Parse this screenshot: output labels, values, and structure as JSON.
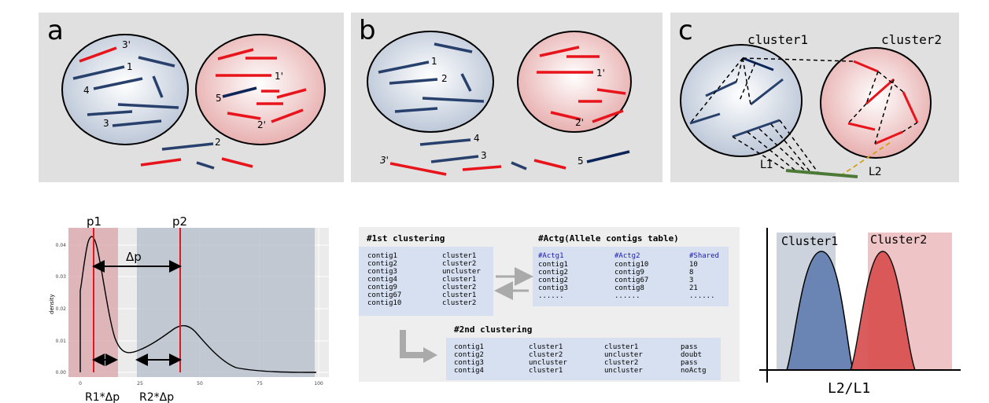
{
  "panel_a": {
    "letter": "a",
    "labels": {
      "l1": "1",
      "l2": "2",
      "l3": "3",
      "l4": "4",
      "l1p": "1'",
      "l2p": "2'",
      "l3p": "3'",
      "l5": "5"
    }
  },
  "panel_b": {
    "letter": "b",
    "labels": {
      "l1": "1",
      "l2": "2",
      "l3": "3",
      "l4": "4",
      "l5": "5",
      "l1p": "1'",
      "l2p": "2'",
      "l3p": "3'"
    }
  },
  "panel_c": {
    "letter": "c",
    "cluster1": "cluster1",
    "cluster2": "cluster2",
    "l1": "L1",
    "l2": "L2"
  },
  "density_plot": {
    "p1": "p1",
    "p2": "p2",
    "delta_p": "Δp",
    "r1": "R1*Δp",
    "r2": "R2*Δp",
    "ylabel": "density",
    "yticks": [
      "0.04",
      "0.03",
      "0.02",
      "0.01",
      "0.00"
    ],
    "xticks": [
      "0",
      "25",
      "50",
      "75",
      "100"
    ]
  },
  "tables": {
    "first_title": "#1st clustering",
    "first_rows": [
      [
        "contig1",
        "cluster1"
      ],
      [
        "contig2",
        "cluster2"
      ],
      [
        "contig3",
        "uncluster"
      ],
      [
        "contig4",
        "cluster1"
      ],
      [
        "contig9",
        "cluster2"
      ],
      [
        "contig67",
        "cluster1"
      ],
      [
        "contig10",
        "cluster2"
      ]
    ],
    "actg_title": "#Actg(Allele contigs table)",
    "actg_header": [
      "#Actg1",
      "#Actg2",
      "#Shared"
    ],
    "actg_rows": [
      [
        "contig1",
        "contig10",
        "10"
      ],
      [
        "contig2",
        "contig9",
        "8"
      ],
      [
        "contig2",
        "contig67",
        "3"
      ],
      [
        "contig3",
        "contig8",
        "21"
      ],
      [
        "......",
        "......",
        "......"
      ]
    ],
    "second_title": "#2nd clustering",
    "second_rows": [
      [
        "contig1",
        "cluster1",
        "cluster1",
        "pass"
      ],
      [
        "contig2",
        "cluster2",
        "uncluster",
        "doubt"
      ],
      [
        "contig3",
        "uncluster",
        "cluster2",
        "pass"
      ],
      [
        "contig4",
        "cluster1",
        "uncluster",
        "noActg"
      ]
    ]
  },
  "ratio_plot": {
    "cluster1": "Cluster1",
    "cluster2": "Cluster2",
    "xlabel": "L2/L1"
  }
}
